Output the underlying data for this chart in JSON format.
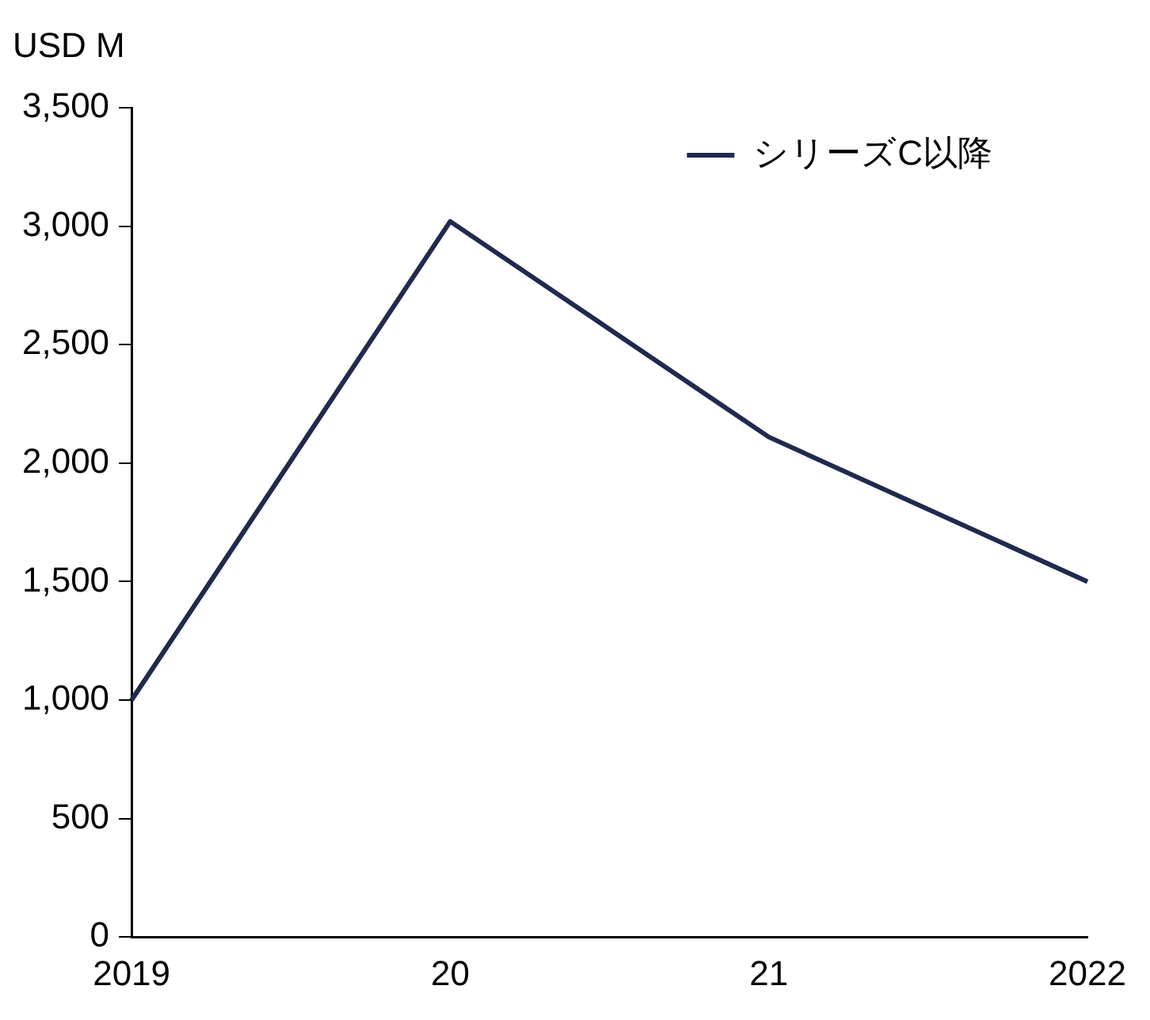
{
  "chart_data": {
    "type": "line",
    "ylabel": "USD M",
    "categories": [
      "2019",
      "20",
      "21",
      "2022"
    ],
    "series": [
      {
        "name": "シリーズC以降",
        "color": "#1f2a4e",
        "values": [
          1000,
          3020,
          2110,
          1500
        ]
      }
    ],
    "ylim": [
      0,
      3500
    ],
    "yticks": [
      0,
      500,
      {
        "value": 1000,
        "label": "1,000"
      },
      {
        "value": 1500,
        "label": "1,500"
      },
      {
        "value": 2000,
        "label": "2,000"
      },
      {
        "value": 2500,
        "label": "2,500"
      },
      {
        "value": 3000,
        "label": "3,000"
      },
      {
        "value": 3500,
        "label": "3,500"
      }
    ],
    "grid": false,
    "legend": "top right",
    "marker": "none",
    "line_style": "solid"
  }
}
